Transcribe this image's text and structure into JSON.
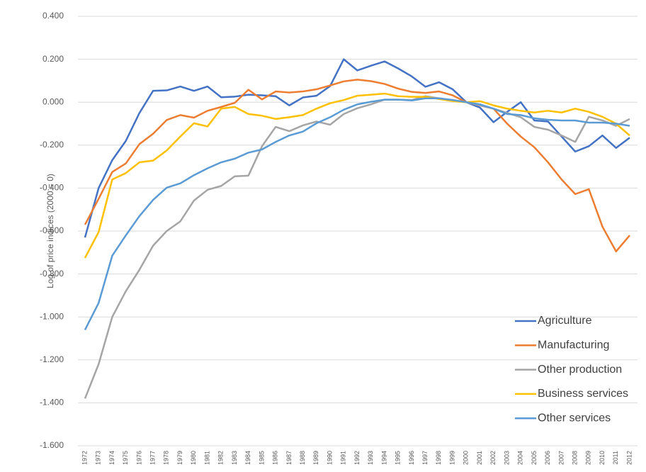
{
  "chart_data": {
    "type": "line",
    "y_label": "Log of price indices (2000 = 0)",
    "categories": [
      "1972",
      "1973",
      "1974",
      "1975",
      "1976",
      "1977",
      "1978",
      "1979",
      "1980",
      "1981",
      "1982",
      "1983",
      "1984",
      "1985",
      "1986",
      "1987",
      "1988",
      "1989",
      "1990",
      "1991",
      "1992",
      "1993",
      "1994",
      "1995",
      "1996",
      "1997",
      "1998",
      "1999",
      "2000",
      "2001",
      "2002",
      "2003",
      "2004",
      "2005",
      "2006",
      "2007",
      "2008",
      "2009",
      "2010",
      "2011",
      "2012"
    ],
    "ylim": [
      -1.6,
      0.4
    ],
    "yticks": [
      {
        "value": -1.6,
        "label": "-1.600"
      },
      {
        "value": -1.4,
        "label": "-1.400"
      },
      {
        "value": -1.2,
        "label": "-1.200"
      },
      {
        "value": -1.0,
        "label": "-1.000"
      },
      {
        "value": -0.8,
        "label": "-0.800"
      },
      {
        "value": -0.6,
        "label": "-0.600"
      },
      {
        "value": -0.4,
        "label": "-0.400"
      },
      {
        "value": -0.2,
        "label": "-0.200"
      },
      {
        "value": 0,
        "label": "0.000"
      },
      {
        "value": 0.2,
        "label": "0.200"
      },
      {
        "value": 0.4,
        "label": "0.400"
      }
    ],
    "grid": true,
    "legend_position": "lower right",
    "series": [
      {
        "name": "Agriculture",
        "color": "#4472c4",
        "values": [
          -0.63,
          -0.4,
          -0.27,
          -0.18,
          -0.05,
          0.053,
          0.055,
          0.073,
          0.053,
          0.073,
          0.023,
          0.026,
          0.035,
          0.032,
          0.028,
          -0.015,
          0.022,
          0.03,
          0.075,
          0.2,
          0.148,
          0.17,
          0.19,
          0.157,
          0.12,
          0.072,
          0.093,
          0.06,
          0,
          -0.025,
          -0.093,
          -0.045,
          0.0,
          -0.085,
          -0.09,
          -0.16,
          -0.23,
          -0.205,
          -0.155,
          -0.213,
          -0.165
        ]
      },
      {
        "name": "Manufacturing",
        "color": "#ed7d31",
        "values": [
          -0.57,
          -0.45,
          -0.325,
          -0.285,
          -0.195,
          -0.147,
          -0.083,
          -0.06,
          -0.072,
          -0.04,
          -0.022,
          -0.003,
          0.058,
          0.013,
          0.05,
          0.045,
          0.05,
          0.06,
          0.078,
          0.097,
          0.105,
          0.098,
          0.085,
          0.063,
          0.048,
          0.043,
          0.05,
          0.032,
          0,
          -0.015,
          -0.03,
          -0.1,
          -0.16,
          -0.21,
          -0.28,
          -0.36,
          -0.428,
          -0.405,
          -0.58,
          -0.695,
          -0.62
        ]
      },
      {
        "name": "Other production",
        "color": "#a5a5a5",
        "values": [
          -1.38,
          -1.22,
          -1.0,
          -0.88,
          -0.78,
          -0.668,
          -0.6,
          -0.555,
          -0.458,
          -0.408,
          -0.39,
          -0.345,
          -0.342,
          -0.205,
          -0.115,
          -0.135,
          -0.108,
          -0.09,
          -0.105,
          -0.055,
          -0.028,
          -0.01,
          0.012,
          0.012,
          0.01,
          0.028,
          0.018,
          0.01,
          0,
          -0.015,
          -0.03,
          -0.05,
          -0.07,
          -0.115,
          -0.128,
          -0.155,
          -0.185,
          -0.068,
          -0.085,
          -0.11,
          -0.078
        ]
      },
      {
        "name": "Business services",
        "color": "#ffc000",
        "values": [
          -0.725,
          -0.605,
          -0.36,
          -0.33,
          -0.28,
          -0.272,
          -0.225,
          -0.16,
          -0.098,
          -0.113,
          -0.03,
          -0.022,
          -0.055,
          -0.063,
          -0.078,
          -0.07,
          -0.06,
          -0.03,
          -0.005,
          0.01,
          0.03,
          0.035,
          0.04,
          0.028,
          0.025,
          0.025,
          0.015,
          0.005,
          0,
          0.005,
          -0.015,
          -0.03,
          -0.04,
          -0.048,
          -0.04,
          -0.048,
          -0.03,
          -0.045,
          -0.068,
          -0.1,
          -0.155
        ]
      },
      {
        "name": "Other services",
        "color": "#5b9bd5",
        "values": [
          -1.06,
          -0.935,
          -0.715,
          -0.62,
          -0.53,
          -0.455,
          -0.398,
          -0.378,
          -0.34,
          -0.308,
          -0.28,
          -0.263,
          -0.235,
          -0.22,
          -0.185,
          -0.155,
          -0.137,
          -0.098,
          -0.07,
          -0.035,
          -0.01,
          0.002,
          0.012,
          0.012,
          0.008,
          0.018,
          0.018,
          0.01,
          0,
          -0.01,
          -0.03,
          -0.055,
          -0.06,
          -0.075,
          -0.082,
          -0.085,
          -0.085,
          -0.095,
          -0.095,
          -0.1,
          -0.11
        ]
      }
    ]
  }
}
